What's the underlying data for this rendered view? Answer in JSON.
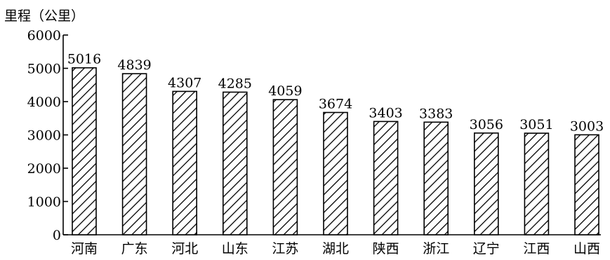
{
  "chart_data": {
    "type": "bar",
    "title": "",
    "xlabel": "",
    "ylabel": "里程（公里）",
    "ylim": [
      0,
      6000
    ],
    "yticks": [
      0,
      1000,
      2000,
      3000,
      4000,
      5000,
      6000
    ],
    "categories": [
      "河南",
      "广东",
      "河北",
      "山东",
      "江苏",
      "湖北",
      "陕西",
      "浙江",
      "辽宁",
      "江西",
      "山西"
    ],
    "values": [
      5016,
      4839,
      4307,
      4285,
      4059,
      3674,
      3403,
      3383,
      3056,
      3051,
      3003
    ],
    "grid": false,
    "legend": "none",
    "bar_fill": "diagonal-hatch",
    "colors": {
      "stroke": "#000000",
      "fill": "#ffffff"
    }
  }
}
